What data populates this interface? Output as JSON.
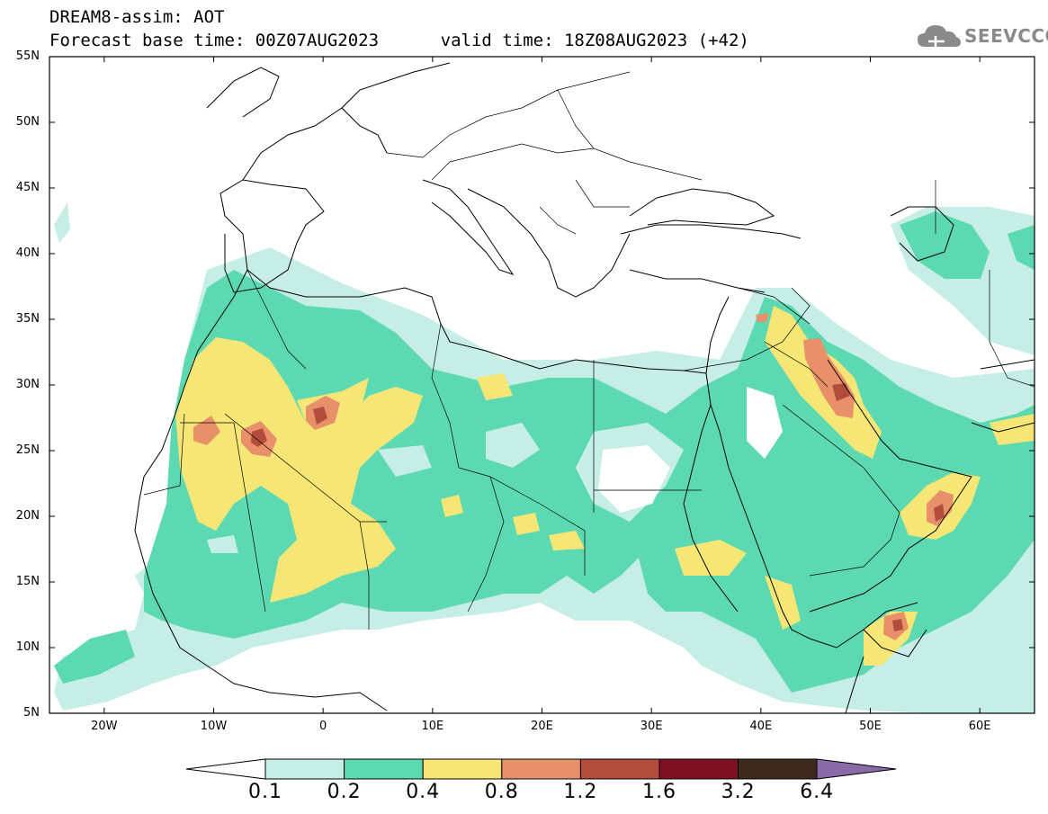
{
  "header": {
    "title": "DREAM8-assim: AOT",
    "subtitle": "Forecast base time: 00Z07AUG2023      valid time: 18Z08AUG2023 (+42)"
  },
  "logo": {
    "text": "SEEVCCC",
    "icon": "cloud-icon"
  },
  "map": {
    "projection": "lat-lon",
    "lon_range": [
      -25,
      65
    ],
    "lat_range": [
      5,
      55
    ],
    "lat_labels": [
      "55N",
      "50N",
      "45N",
      "40N",
      "35N",
      "30N",
      "25N",
      "20N",
      "15N",
      "10N",
      "5N"
    ],
    "lon_labels": [
      "20W",
      "10W",
      "0",
      "10E",
      "20E",
      "30E",
      "40E",
      "50E",
      "60E"
    ]
  },
  "colorbar": {
    "labels": [
      "0.1",
      "0.2",
      "0.4",
      "0.8",
      "1.2",
      "1.6",
      "3.2",
      "6.4"
    ],
    "colors": [
      "#ffffff",
      "#c6eee6",
      "#5dd9b1",
      "#f5e676",
      "#e8906a",
      "#b24d3e",
      "#7f0f23",
      "#3d2a1c",
      "#8b6aa8"
    ]
  }
}
